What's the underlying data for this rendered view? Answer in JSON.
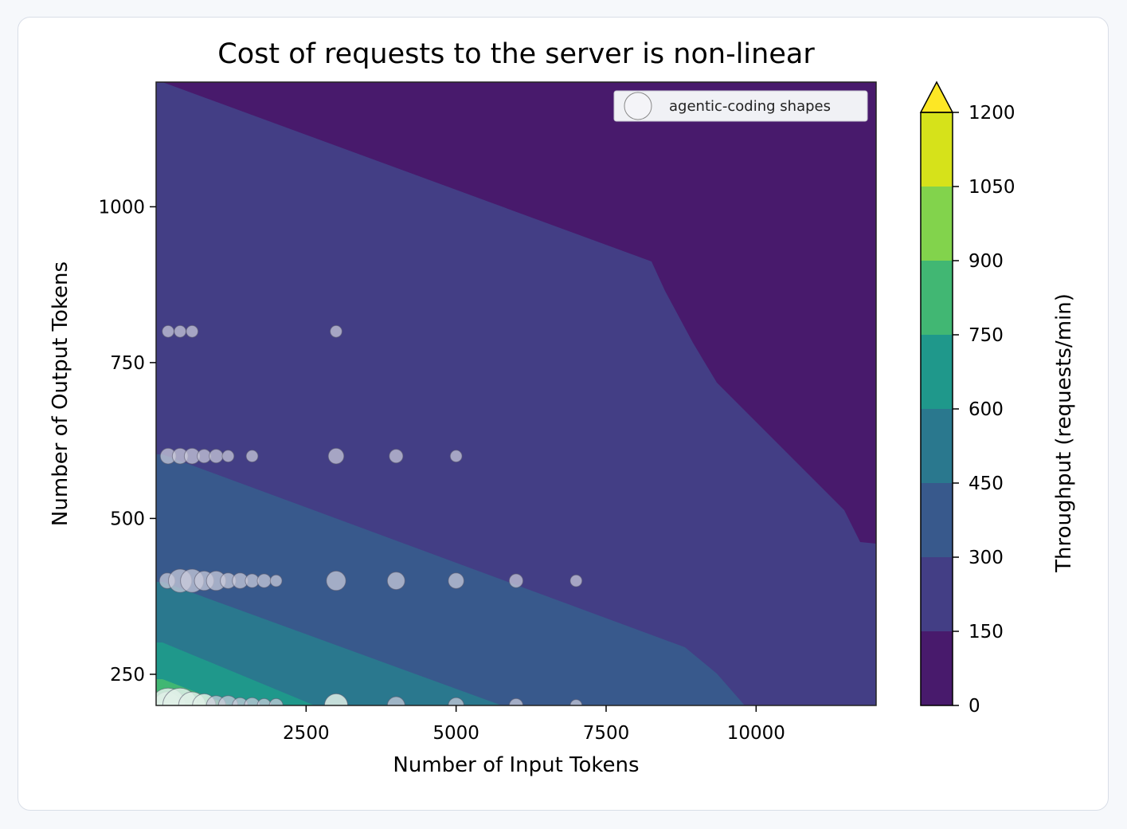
{
  "chart_data": {
    "type": "heatmap",
    "title": "Cost of requests to the server is non-linear",
    "xlabel": "Number of Input Tokens",
    "ylabel": "Number of Output Tokens",
    "xlim": [
      0,
      12000
    ],
    "ylim": [
      200,
      1200
    ],
    "x_ticks": [
      2500,
      5000,
      7500,
      10000
    ],
    "y_ticks": [
      250,
      500,
      750,
      1000
    ],
    "grid": false,
    "colorbar": {
      "label": "Throughput (requests/min)",
      "levels": [
        0,
        150,
        300,
        450,
        600,
        750,
        900,
        1050,
        1200
      ],
      "tick_labels": [
        "0",
        "150",
        "300",
        "450",
        "600",
        "750",
        "900",
        "1050",
        "1200"
      ],
      "colors": [
        "#481a6c",
        "#433e85",
        "#38598c",
        "#2a788e",
        "#1f988b",
        "#41b773",
        "#82d34c",
        "#d6e21a"
      ],
      "extend_color": "#fde725"
    },
    "legend": {
      "position": "top-right",
      "entries": [
        "agentic-coding shapes"
      ]
    },
    "series": [
      {
        "name": "agentic-coding shapes",
        "points": [
          {
            "x": 200,
            "y": 800,
            "s": 1
          },
          {
            "x": 400,
            "y": 800,
            "s": 1
          },
          {
            "x": 600,
            "y": 800,
            "s": 1
          },
          {
            "x": 3000,
            "y": 800,
            "s": 1
          },
          {
            "x": 200,
            "y": 600,
            "s": 2
          },
          {
            "x": 400,
            "y": 600,
            "s": 2
          },
          {
            "x": 600,
            "y": 600,
            "s": 2
          },
          {
            "x": 800,
            "y": 600,
            "s": 1.5
          },
          {
            "x": 1000,
            "y": 600,
            "s": 1.5
          },
          {
            "x": 1200,
            "y": 600,
            "s": 1
          },
          {
            "x": 1600,
            "y": 600,
            "s": 1
          },
          {
            "x": 3000,
            "y": 600,
            "s": 2
          },
          {
            "x": 4000,
            "y": 600,
            "s": 1.5
          },
          {
            "x": 5000,
            "y": 600,
            "s": 1
          },
          {
            "x": 0,
            "y": 400,
            "s": 2
          },
          {
            "x": 400,
            "y": 400,
            "s": 4
          },
          {
            "x": 600,
            "y": 400,
            "s": 4
          },
          {
            "x": 800,
            "y": 400,
            "s": 3
          },
          {
            "x": 1000,
            "y": 400,
            "s": 3
          },
          {
            "x": 1200,
            "y": 400,
            "s": 2
          },
          {
            "x": 1400,
            "y": 400,
            "s": 2
          },
          {
            "x": 1600,
            "y": 400,
            "s": 1.5
          },
          {
            "x": 1800,
            "y": 400,
            "s": 1.5
          },
          {
            "x": 2000,
            "y": 400,
            "s": 1
          },
          {
            "x": 3000,
            "y": 400,
            "s": 3
          },
          {
            "x": 4000,
            "y": 400,
            "s": 2.5
          },
          {
            "x": 5000,
            "y": 400,
            "s": 2
          },
          {
            "x": 6000,
            "y": 400,
            "s": 1.5
          },
          {
            "x": 7000,
            "y": 400,
            "s": 1
          },
          {
            "x": 0,
            "y": 200,
            "s": 5
          },
          {
            "x": 200,
            "y": 200,
            "s": 7
          },
          {
            "x": 400,
            "y": 200,
            "s": 7
          },
          {
            "x": 600,
            "y": 200,
            "s": 5
          },
          {
            "x": 800,
            "y": 200,
            "s": 4
          },
          {
            "x": 1000,
            "y": 200,
            "s": 3
          },
          {
            "x": 1200,
            "y": 200,
            "s": 3
          },
          {
            "x": 1400,
            "y": 200,
            "s": 2
          },
          {
            "x": 1600,
            "y": 200,
            "s": 2
          },
          {
            "x": 1800,
            "y": 200,
            "s": 1.5
          },
          {
            "x": 2000,
            "y": 200,
            "s": 1.5
          },
          {
            "x": 3000,
            "y": 200,
            "s": 4
          },
          {
            "x": 4000,
            "y": 200,
            "s": 2.5
          },
          {
            "x": 5000,
            "y": 200,
            "s": 2
          },
          {
            "x": 6000,
            "y": 200,
            "s": 1.5
          },
          {
            "x": 7000,
            "y": 200,
            "s": 1
          }
        ]
      }
    ]
  }
}
